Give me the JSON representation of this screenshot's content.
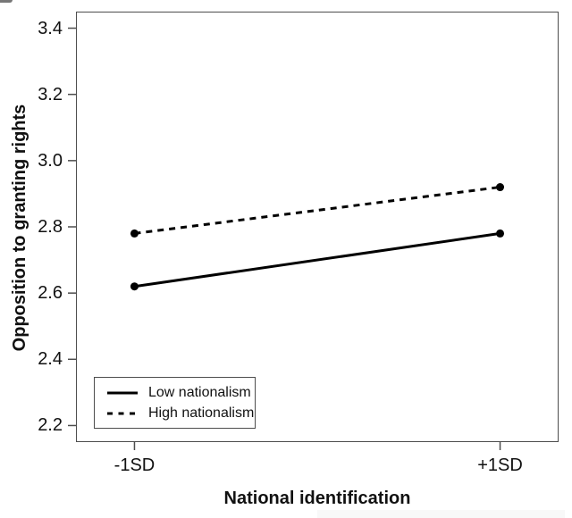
{
  "colors": {
    "background": "#ffffff",
    "axis": "#4d4d4d",
    "text": "#111111",
    "series_color": "#000000"
  },
  "chart_data": {
    "type": "line",
    "title": "",
    "xlabel": "National identification",
    "ylabel": "Opposition to granting rights",
    "categories": [
      "-1SD",
      "+1SD"
    ],
    "x": [
      1,
      2
    ],
    "xlim": [
      0.84,
      2.16
    ],
    "ylim": [
      2.15,
      3.45
    ],
    "y_ticks": [
      2.2,
      2.4,
      2.6,
      2.8,
      3.0,
      3.2,
      3.4
    ],
    "grid": false,
    "legend_position": "inside-bottom-left",
    "marker": "filled-circle",
    "series": [
      {
        "name": "Low nationalism",
        "line_style": "solid",
        "color": "#000000",
        "values": [
          2.62,
          2.78
        ]
      },
      {
        "name": "High nationalism",
        "line_style": "dashed",
        "color": "#000000",
        "values": [
          2.78,
          2.92
        ]
      }
    ]
  }
}
